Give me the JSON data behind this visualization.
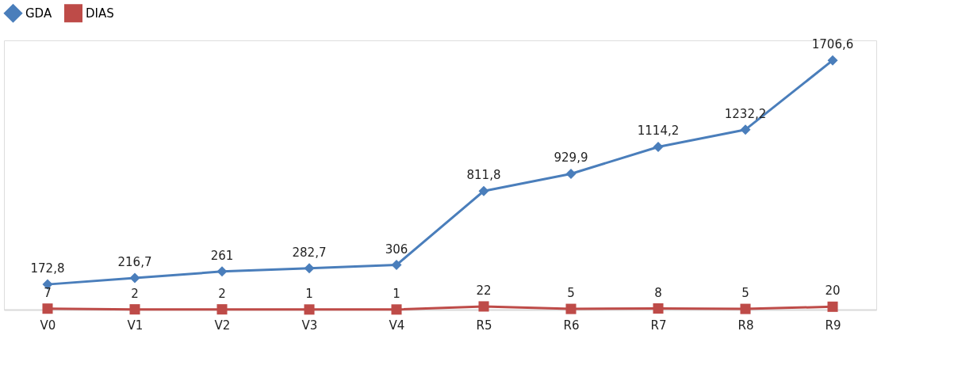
{
  "chart_data": {
    "type": "line",
    "categories": [
      "V0",
      "V1",
      "V2",
      "V3",
      "V4",
      "R5",
      "R6",
      "R7",
      "R8",
      "R9"
    ],
    "legend": "top",
    "line_style": "solid",
    "series": [
      {
        "name": "GDA",
        "color": "#4a7ebb",
        "marker": "diamond",
        "values": [
          172.8,
          216.7,
          261,
          282.7,
          306,
          811.8,
          929.9,
          1114.2,
          1232.2,
          1706.6
        ],
        "value_labels": [
          "172,8",
          "216,7",
          "261",
          "282,7",
          "306",
          "811,8",
          "929,9",
          "1114,2",
          "1232,2",
          "1706,6"
        ]
      },
      {
        "name": "DIAS",
        "color": "#be4b48",
        "marker": "square",
        "values": [
          7,
          2,
          2,
          1,
          1,
          22,
          5,
          8,
          5,
          20
        ],
        "value_labels": [
          "7",
          "2",
          "2",
          "1",
          "1",
          "22",
          "5",
          "8",
          "5",
          "20"
        ]
      }
    ]
  }
}
